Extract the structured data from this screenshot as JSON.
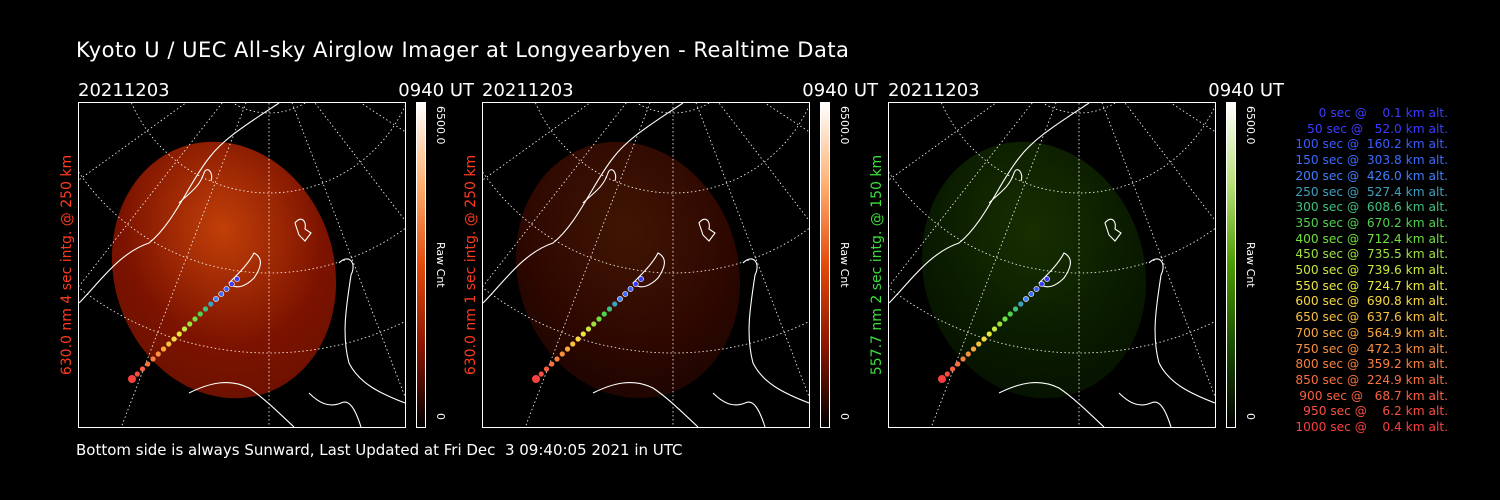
{
  "title": "Kyoto U / UEC All-sky Airglow Imager at Longyearbyen - Realtime Data",
  "panels": [
    {
      "date": "20211203",
      "time": "0940 UT",
      "label": "630.0 nm 4 sec intg. @ 250 km",
      "label_color": "#ff3a1f",
      "cbar_max": "6500.0",
      "cbar_unit": "Raw Cnt",
      "cbar_min": "0",
      "colormap": [
        "#000000",
        "#8a1500",
        "#e34a0a",
        "#ffb070",
        "#ffffff"
      ],
      "intensity": 0.85
    },
    {
      "date": "20211203",
      "time": "0940 UT",
      "label": "630.0 nm 1 sec intg. @ 250 km",
      "label_color": "#ff3a1f",
      "cbar_max": "6500.0",
      "cbar_unit": "Raw Cnt",
      "cbar_min": "0",
      "colormap": [
        "#000000",
        "#8a1500",
        "#e34a0a",
        "#ffb070",
        "#ffffff"
      ],
      "intensity": 0.28
    },
    {
      "date": "20211203",
      "time": "0940 UT",
      "label": "557.7 nm 2 sec intg. @ 150 km",
      "label_color": "#3adf3a",
      "cbar_max": "6500.0",
      "cbar_unit": "Raw Cnt",
      "cbar_min": "0",
      "colormap": [
        "#000000",
        "#1a4c00",
        "#4a9a00",
        "#b8e07a",
        "#ffffff"
      ],
      "intensity": 0.3
    }
  ],
  "legend": [
    {
      "text": "   0 sec @    0.1 km alt.",
      "color": "#3b3bff"
    },
    {
      "text": "  50 sec @   52.0 km alt.",
      "color": "#3b3bff"
    },
    {
      "text": " 100 sec @  160.2 km alt.",
      "color": "#3b5bff"
    },
    {
      "text": " 150 sec @  303.8 km alt.",
      "color": "#3b6bff"
    },
    {
      "text": " 200 sec @  426.0 km alt.",
      "color": "#3f7fff"
    },
    {
      "text": " 250 sec @  527.4 km alt.",
      "color": "#3fa0c0"
    },
    {
      "text": " 300 sec @  608.6 km alt.",
      "color": "#3fc07f"
    },
    {
      "text": " 350 sec @  670.2 km alt.",
      "color": "#4fd24f"
    },
    {
      "text": " 400 sec @  712.4 km alt.",
      "color": "#6fe03f"
    },
    {
      "text": " 450 sec @  735.5 km alt.",
      "color": "#9fe03f"
    },
    {
      "text": " 500 sec @  739.6 km alt.",
      "color": "#c8e83f"
    },
    {
      "text": " 550 sec @  724.7 km alt.",
      "color": "#e8e83f"
    },
    {
      "text": " 600 sec @  690.8 km alt.",
      "color": "#f8d83f"
    },
    {
      "text": " 650 sec @  637.6 km alt.",
      "color": "#f8c03f"
    },
    {
      "text": " 700 sec @  564.9 km alt.",
      "color": "#f8a83f"
    },
    {
      "text": " 750 sec @  472.3 km alt.",
      "color": "#f8903f"
    },
    {
      "text": " 800 sec @  359.2 km alt.",
      "color": "#f8803f"
    },
    {
      "text": " 850 sec @  224.9 km alt.",
      "color": "#f8703f"
    },
    {
      "text": " 900 sec @   68.7 km alt.",
      "color": "#f8603f"
    },
    {
      "text": " 950 sec @    6.2 km alt.",
      "color": "#f8503f"
    },
    {
      "text": "1000 sec @    0.4 km alt.",
      "color": "#f8403f"
    }
  ],
  "footer": "Bottom side is always Sunward, Last Updated at Fri Dec  3 09:40:05 2021 in UTC"
}
